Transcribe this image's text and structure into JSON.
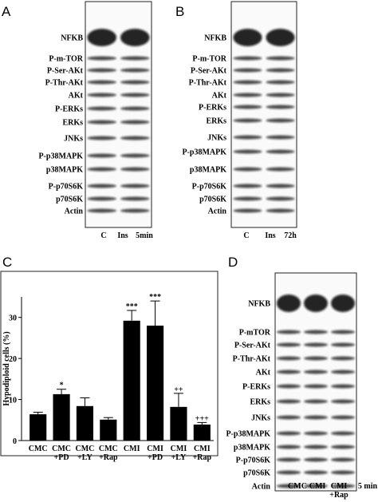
{
  "panels": [
    {
      "letter": "A",
      "rows": [
        "NFKB",
        "P-m-TOR",
        "P-Ser-AKt",
        "P-Thr-AKt",
        "AKt",
        "P-ERKs",
        "ERKs",
        "JNKs",
        "P-p38MAPK",
        "p38MAPK",
        "P-p70S6K",
        "p70S6K",
        "Actin"
      ],
      "lanes": [
        "C",
        "Ins"
      ],
      "time": "5min"
    },
    {
      "letter": "B",
      "rows": [
        "NFKB",
        "P-m-TOR",
        "P-Ser-AKt",
        "P-Thr-AKt",
        "AKt",
        "P-ERKs",
        "ERKs",
        "JNKs",
        "P-p38MAPK",
        "p38MAPK",
        "P-p70S6K",
        "p70S6K",
        "Actin"
      ],
      "lanes": [
        "C",
        "Ins"
      ],
      "time": "72h"
    },
    {
      "letter": "D",
      "rows": [
        "NFKB",
        "P-mTOR",
        "P-Ser-AKt",
        "P-Thr-AKt",
        "AKt",
        "P-ERKs",
        "ERKs",
        "JNKs",
        "P-p38MAPK",
        "p38MAPK",
        "P-p70S6K",
        "p70S6K",
        "Actin"
      ],
      "lanes": [
        "CMC",
        "CMI",
        "CMI\n+Rap"
      ],
      "time": "5 min"
    }
  ],
  "chart_data": {
    "type": "bar",
    "panel": "C",
    "y_label": "Hypodiploid cells (%)",
    "categories": [
      "CMC",
      "CMC\n+PD",
      "CMC\n+LY",
      "CMC\n+Rap",
      "CMI",
      "CMI\n+PD",
      "CMI\n+LY",
      "CMI\n+Rap"
    ],
    "values": [
      6.4,
      11.3,
      8.4,
      5.1,
      29.2,
      28,
      8.2,
      3.9
    ],
    "errors": [
      0.5,
      1.2,
      2,
      0.5,
      2.5,
      6,
      3.3,
      0.5
    ],
    "annotations": [
      null,
      "*",
      null,
      null,
      "***",
      "***",
      "++",
      "+++"
    ],
    "color": "#000000",
    "ylim": [
      0,
      35
    ],
    "yticks": [
      0,
      10,
      20,
      30
    ]
  }
}
